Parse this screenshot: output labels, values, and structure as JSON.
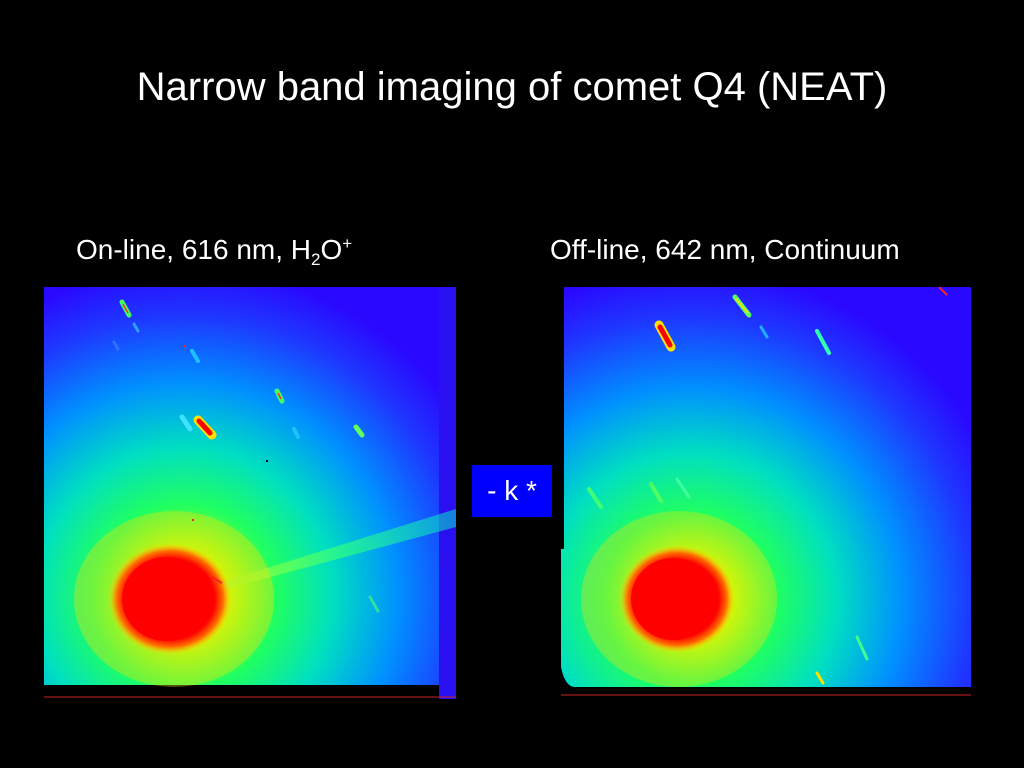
{
  "slide": {
    "title": "Narrow band imaging of comet Q4 (NEAT)",
    "left_label": {
      "prefix": "On-line, 616 nm, H",
      "subscript": "2",
      "middle": "O",
      "superscript": "+"
    },
    "right_label": "Off-line, 642 nm, Continuum",
    "operator": "- k *"
  },
  "colors": {
    "background": "#000000",
    "operator_box": "#0000ff",
    "colormap": [
      "#2400ff",
      "#0090ff",
      "#00ff80",
      "#ffff00",
      "#ff0000"
    ]
  }
}
